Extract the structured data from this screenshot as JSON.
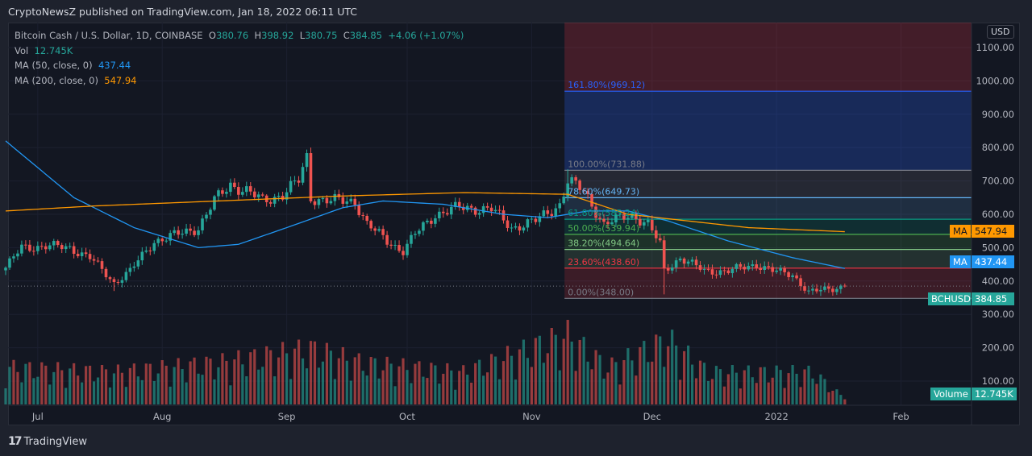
{
  "header": {
    "published": "CryptoNewsZ published on TradingView.com, Jan 18, 2022 06:11 UTC"
  },
  "legend": {
    "symbol": "Bitcoin Cash / U.S. Dollar, 1D, COINBASE",
    "o_label": "O",
    "o": "380.76",
    "h_label": "H",
    "h": "398.92",
    "l_label": "L",
    "l": "380.75",
    "c_label": "C",
    "c": "384.85",
    "change": "+4.06 (+1.07%)",
    "vol_label": "Vol",
    "vol": "12.745K",
    "ma50_label": "MA (50, close, 0)",
    "ma50": "437.44",
    "ma200_label": "MA (200, close, 0)",
    "ma200": "547.94"
  },
  "axis_tags": {
    "currency": "USD",
    "ma200_label": "MA",
    "ma200_value": "547.94",
    "ma50_label": "MA",
    "ma50_value": "437.44",
    "symbol_label": "BCHUSD",
    "price_value": "384.85",
    "volume_label": "Volume",
    "volume_value": "12.745K"
  },
  "footer": {
    "brand": "TradingView"
  },
  "colors": {
    "up": "#26a69a",
    "down": "#ef5350",
    "ma50": "#2196f3",
    "ma200": "#ff9800"
  },
  "chart_data": {
    "type": "candlestick",
    "title": "Bitcoin Cash / U.S. Dollar, 1D, COINBASE",
    "start_date": "2021-06-23",
    "ylim": [
      100,
      1100
    ],
    "y_ticks": [
      "1100.00",
      "1000.00",
      "900.00",
      "800.00",
      "700.00",
      "600.00",
      "500.00",
      "400.00",
      "300.00",
      "200.00",
      "100.00"
    ],
    "x_ticks": [
      [
        "2021-07-01",
        "Jul"
      ],
      [
        "2021-08-01",
        "Aug"
      ],
      [
        "2021-09-01",
        "Sep"
      ],
      [
        "2021-10-01",
        "Oct"
      ],
      [
        "2021-11-01",
        "Nov"
      ],
      [
        "2021-12-01",
        "Dec"
      ],
      [
        "2022-01-01",
        "2022"
      ],
      [
        "2022-02-01",
        "Feb"
      ]
    ],
    "close_anchors": [
      [
        "2021-06-23",
        440
      ],
      [
        "2021-06-27",
        500
      ],
      [
        "2021-07-03",
        505
      ],
      [
        "2021-07-09",
        500
      ],
      [
        "2021-07-14",
        470
      ],
      [
        "2021-07-20",
        395
      ],
      [
        "2021-07-24",
        430
      ],
      [
        "2021-07-30",
        520
      ],
      [
        "2021-08-05",
        540
      ],
      [
        "2021-08-10",
        560
      ],
      [
        "2021-08-14",
        640
      ],
      [
        "2021-08-18",
        690
      ],
      [
        "2021-08-22",
        670
      ],
      [
        "2021-08-26",
        640
      ],
      [
        "2021-08-31",
        660
      ],
      [
        "2021-09-04",
        700
      ],
      [
        "2021-09-06",
        770
      ],
      [
        "2021-09-07",
        650
      ],
      [
        "2021-09-12",
        640
      ],
      [
        "2021-09-18",
        640
      ],
      [
        "2021-09-21",
        570
      ],
      [
        "2021-09-26",
        520
      ],
      [
        "2021-09-30",
        490
      ],
      [
        "2021-10-03",
        540
      ],
      [
        "2021-10-08",
        600
      ],
      [
        "2021-10-14",
        620
      ],
      [
        "2021-10-22",
        615
      ],
      [
        "2021-10-27",
        560
      ],
      [
        "2021-11-02",
        580
      ],
      [
        "2021-11-08",
        630
      ],
      [
        "2021-11-10",
        700
      ],
      [
        "2021-11-14",
        670
      ],
      [
        "2021-11-19",
        570
      ],
      [
        "2021-11-26",
        600
      ],
      [
        "2021-11-30",
        570
      ],
      [
        "2021-12-03",
        510
      ],
      [
        "2021-12-04",
        430
      ],
      [
        "2021-12-08",
        470
      ],
      [
        "2021-12-14",
        430
      ],
      [
        "2021-12-20",
        430
      ],
      [
        "2021-12-27",
        450
      ],
      [
        "2021-12-31",
        430
      ],
      [
        "2022-01-05",
        420
      ],
      [
        "2022-01-09",
        365
      ],
      [
        "2022-01-13",
        375
      ],
      [
        "2022-01-18",
        384.85
      ]
    ],
    "wick_extremes": [
      [
        "2021-07-20",
        "low",
        370
      ],
      [
        "2021-09-07",
        "high",
        800
      ],
      [
        "2021-11-10",
        "high",
        735
      ],
      [
        "2021-12-04",
        "low",
        360
      ]
    ],
    "ma50_anchors": [
      [
        "2021-06-23",
        820
      ],
      [
        "2021-07-10",
        650
      ],
      [
        "2021-07-25",
        560
      ],
      [
        "2021-08-10",
        500
      ],
      [
        "2021-08-20",
        510
      ],
      [
        "2021-09-01",
        560
      ],
      [
        "2021-09-15",
        620
      ],
      [
        "2021-09-25",
        640
      ],
      [
        "2021-10-10",
        630
      ],
      [
        "2021-10-25",
        600
      ],
      [
        "2021-11-05",
        590
      ],
      [
        "2021-11-15",
        610
      ],
      [
        "2021-11-25",
        610
      ],
      [
        "2021-12-05",
        580
      ],
      [
        "2021-12-20",
        520
      ],
      [
        "2022-01-05",
        470
      ],
      [
        "2022-01-18",
        437.44
      ]
    ],
    "ma200_anchors": [
      [
        "2021-06-23",
        610
      ],
      [
        "2021-07-15",
        625
      ],
      [
        "2021-08-15",
        640
      ],
      [
        "2021-09-15",
        655
      ],
      [
        "2021-10-15",
        665
      ],
      [
        "2021-11-10",
        660
      ],
      [
        "2021-11-25",
        600
      ],
      [
        "2021-12-10",
        580
      ],
      [
        "2021-12-25",
        560
      ],
      [
        "2022-01-18",
        547.94
      ]
    ],
    "volume_anchors_k": [
      [
        "2021-06-23",
        80
      ],
      [
        "2021-07-20",
        70
      ],
      [
        "2021-08-15",
        90
      ],
      [
        "2021-09-07",
        120
      ],
      [
        "2021-09-20",
        90
      ],
      [
        "2021-10-15",
        70
      ],
      [
        "2021-11-10",
        150
      ],
      [
        "2021-11-20",
        80
      ],
      [
        "2021-12-05",
        140
      ],
      [
        "2021-12-15",
        70
      ],
      [
        "2022-01-10",
        70
      ],
      [
        "2022-01-18",
        12.745
      ]
    ],
    "fib": {
      "start_date": "2021-11-10",
      "levels": [
        {
          "ratio": "161.80%",
          "price": 969.12,
          "label": "161.80%(969.12)",
          "color": "#2962ff"
        },
        {
          "ratio": "100.00%",
          "price": 731.88,
          "label": "100.00%(731.88)",
          "color": "#787b86"
        },
        {
          "ratio": "78.60%",
          "price": 649.73,
          "label": "78.60%(649.73)",
          "color": "#64b5f6"
        },
        {
          "ratio": "61.80%",
          "price": 585.24,
          "label": "61.80%(585.24)",
          "color": "#089981"
        },
        {
          "ratio": "50.00%",
          "price": 539.94,
          "label": "50.00%(539.94)",
          "color": "#4caf50"
        },
        {
          "ratio": "38.20%",
          "price": 494.64,
          "label": "38.20%(494.64)",
          "color": "#81c784"
        },
        {
          "ratio": "23.60%",
          "price": 438.6,
          "label": "23.60%(438.60)",
          "color": "#f23645"
        },
        {
          "ratio": "0.00%",
          "price": 348.0,
          "label": "0.00%(348.00)",
          "color": "#787b86"
        }
      ]
    },
    "last_price": 384.85
  }
}
